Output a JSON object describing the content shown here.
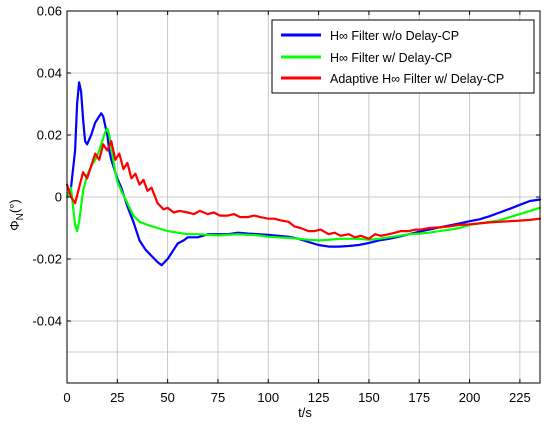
{
  "chart_data": {
    "type": "line",
    "xlabel": "t/s",
    "ylabel_main": "Φ",
    "ylabel_sub": "N",
    "ylabel_unit": "(°)",
    "xlim": [
      0,
      235
    ],
    "ylim": [
      -0.06,
      0.06
    ],
    "grid": true,
    "legend_position": "top-right",
    "x_ticks": [
      0,
      25,
      50,
      75,
      100,
      125,
      150,
      175,
      200,
      225
    ],
    "x_tick_labels": [
      "0",
      "25",
      "50",
      "75",
      "100",
      "125",
      "150",
      "175",
      "200",
      "225"
    ],
    "y_ticks": [
      0.06,
      0.04,
      0.02,
      0,
      -0.02,
      -0.04
    ],
    "y_tick_labels": [
      "0.06",
      "0.04",
      "0.02",
      "0",
      "-0.02",
      "-0.04"
    ],
    "series": [
      {
        "name": "H∞ Filter w/o Delay-CP",
        "color": "#0000ff",
        "x": [
          0,
          2,
          4,
          5,
          6,
          7,
          8,
          9,
          10,
          12,
          14,
          16,
          17,
          18,
          19,
          20,
          21,
          22,
          23,
          24,
          25,
          27,
          30,
          33,
          36,
          39,
          42,
          45,
          47,
          50,
          53,
          55,
          58,
          60,
          63,
          65,
          70,
          75,
          80,
          85,
          90,
          95,
          100,
          105,
          110,
          115,
          120,
          125,
          130,
          135,
          140,
          145,
          150,
          155,
          160,
          165,
          170,
          175,
          180,
          185,
          190,
          195,
          200,
          205,
          210,
          215,
          220,
          225,
          230,
          235
        ],
        "y": [
          0.0,
          0.003,
          0.015,
          0.03,
          0.037,
          0.034,
          0.025,
          0.018,
          0.017,
          0.02,
          0.024,
          0.026,
          0.027,
          0.026,
          0.023,
          0.02,
          0.015,
          0.012,
          0.01,
          0.008,
          0.006,
          0.003,
          -0.003,
          -0.008,
          -0.014,
          -0.017,
          -0.019,
          -0.021,
          -0.022,
          -0.02,
          -0.017,
          -0.015,
          -0.014,
          -0.013,
          -0.013,
          -0.013,
          -0.012,
          -0.012,
          -0.012,
          -0.0115,
          -0.0118,
          -0.012,
          -0.0122,
          -0.0125,
          -0.0128,
          -0.0135,
          -0.0145,
          -0.0155,
          -0.016,
          -0.016,
          -0.0158,
          -0.0155,
          -0.0148,
          -0.014,
          -0.0135,
          -0.0128,
          -0.012,
          -0.0112,
          -0.0105,
          -0.0098,
          -0.0092,
          -0.0085,
          -0.0078,
          -0.0072,
          -0.0062,
          -0.005,
          -0.0038,
          -0.0025,
          -0.0013,
          -0.0008
        ]
      },
      {
        "name": "H∞ Filter w/ Delay-CP",
        "color": "#00ff00",
        "x": [
          0,
          2,
          3,
          4,
          5,
          6,
          7,
          8,
          10,
          12,
          14,
          16,
          18,
          19,
          20,
          21,
          22,
          23,
          24,
          25,
          27,
          30,
          33,
          36,
          40,
          45,
          50,
          55,
          60,
          65,
          70,
          75,
          80,
          85,
          90,
          95,
          100,
          105,
          110,
          115,
          120,
          125,
          130,
          135,
          140,
          145,
          150,
          155,
          160,
          165,
          170,
          175,
          180,
          185,
          190,
          195,
          200,
          205,
          210,
          215,
          220,
          225,
          230,
          235
        ],
        "y": [
          0.0,
          0.003,
          -0.003,
          -0.009,
          -0.011,
          -0.008,
          -0.003,
          0.002,
          0.007,
          0.01,
          0.012,
          0.015,
          0.019,
          0.021,
          0.022,
          0.02,
          0.016,
          0.012,
          0.008,
          0.005,
          0.002,
          -0.002,
          -0.006,
          -0.008,
          -0.009,
          -0.01,
          -0.011,
          -0.0115,
          -0.012,
          -0.012,
          -0.0122,
          -0.0124,
          -0.0122,
          -0.012,
          -0.0122,
          -0.0124,
          -0.0128,
          -0.013,
          -0.0132,
          -0.0135,
          -0.0138,
          -0.014,
          -0.0138,
          -0.0135,
          -0.0135,
          -0.0135,
          -0.0138,
          -0.0135,
          -0.013,
          -0.0125,
          -0.012,
          -0.0118,
          -0.0115,
          -0.011,
          -0.0105,
          -0.01,
          -0.009,
          -0.0085,
          -0.008,
          -0.0075,
          -0.0065,
          -0.0055,
          -0.0045,
          -0.0035
        ]
      },
      {
        "name": "Adaptive H∞ Filter w/ Delay-CP",
        "color": "#ff0000",
        "x": [
          0,
          2,
          4,
          6,
          8,
          10,
          12,
          14,
          16,
          18,
          20,
          22,
          24,
          26,
          28,
          30,
          32,
          34,
          36,
          38,
          40,
          42,
          45,
          48,
          50,
          53,
          56,
          60,
          63,
          66,
          70,
          73,
          76,
          80,
          83,
          86,
          90,
          93,
          96,
          100,
          103,
          106,
          110,
          113,
          116,
          120,
          123,
          126,
          130,
          133,
          136,
          140,
          143,
          146,
          150,
          153,
          156,
          160,
          163,
          166,
          170,
          173,
          176,
          180,
          185,
          190,
          195,
          200,
          205,
          210,
          215,
          220,
          225,
          230,
          235
        ],
        "y": [
          0.004,
          0.0,
          -0.002,
          0.003,
          0.008,
          0.006,
          0.01,
          0.014,
          0.012,
          0.017,
          0.015,
          0.018,
          0.012,
          0.014,
          0.009,
          0.011,
          0.006,
          0.0075,
          0.004,
          0.0055,
          0.002,
          0.003,
          -0.002,
          -0.004,
          -0.0035,
          -0.005,
          -0.0045,
          -0.005,
          -0.0055,
          -0.0045,
          -0.0055,
          -0.005,
          -0.006,
          -0.006,
          -0.0055,
          -0.0065,
          -0.0065,
          -0.006,
          -0.0065,
          -0.007,
          -0.007,
          -0.0075,
          -0.008,
          -0.0095,
          -0.01,
          -0.011,
          -0.011,
          -0.0105,
          -0.012,
          -0.0115,
          -0.0125,
          -0.012,
          -0.013,
          -0.0125,
          -0.0135,
          -0.012,
          -0.0125,
          -0.012,
          -0.0115,
          -0.011,
          -0.011,
          -0.0105,
          -0.0105,
          -0.01,
          -0.0098,
          -0.0095,
          -0.009,
          -0.0088,
          -0.0085,
          -0.0082,
          -0.008,
          -0.0078,
          -0.0076,
          -0.0074,
          -0.007
        ]
      }
    ]
  }
}
